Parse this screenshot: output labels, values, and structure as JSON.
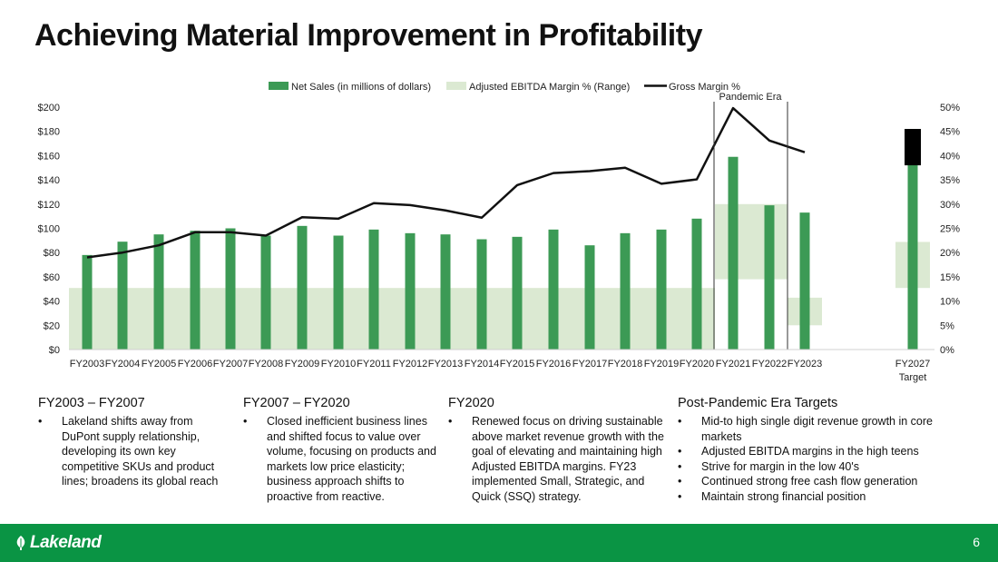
{
  "title": "Achieving Material Improvement in Profitability",
  "chart_data": {
    "type": "bar",
    "categories": [
      "FY2003",
      "FY2004",
      "FY2005",
      "FY2006",
      "FY2007",
      "FY2008",
      "FY2009",
      "FY2010",
      "FY2011",
      "FY2012",
      "FY2013",
      "FY2014",
      "FY2015",
      "FY2016",
      "FY2017",
      "FY2018",
      "FY2019",
      "FY2020",
      "FY2021",
      "FY2022",
      "FY2023",
      "FY2027\nTarget"
    ],
    "legend": {
      "net_sales": "Net Sales (in millions of dollars)",
      "ebitda": "Adjusted EBITDA Margin % (Range)",
      "gross": "Gross Margin %"
    },
    "legend_position": "top-center",
    "annotation": "Pandemic Era",
    "net_sales": [
      78,
      89,
      95,
      98,
      100,
      94,
      102,
      94,
      99,
      96,
      95,
      91,
      93,
      99,
      86,
      96,
      99,
      108,
      159,
      119,
      113,
      182
    ],
    "gross_margin_pct": [
      19,
      20,
      21.5,
      24.2,
      24.2,
      23.5,
      27.3,
      27,
      30.2,
      29.8,
      28.7,
      27.2,
      33.9,
      36.4,
      36.8,
      37.5,
      34.2,
      35.1,
      49.8,
      43.1,
      40.7,
      null
    ],
    "gross_margin_target_pct": [
      38,
      45.5
    ],
    "ebitda_ranges_pct": [
      {
        "from": "FY2003",
        "to": "FY2020",
        "low": 0,
        "high": 12.7
      },
      {
        "from": "FY2021",
        "to": "FY2022",
        "low": 14.5,
        "high": 30
      },
      {
        "from": "FY2023",
        "to": "FY2023",
        "low": 5,
        "high": 10.7
      },
      {
        "from": "FY2027\nTarget",
        "to": "FY2027\nTarget",
        "low": 12.7,
        "high": 22.2
      }
    ],
    "y_left": {
      "min": 0,
      "max": 200,
      "step": 20,
      "ticks": [
        "$0",
        "$20",
        "$40",
        "$60",
        "$80",
        "$100",
        "$120",
        "$140",
        "$160",
        "$180",
        "$200"
      ]
    },
    "y_right": {
      "min": 0,
      "max": 50,
      "step": 5,
      "ticks": [
        "0%",
        "5%",
        "10%",
        "15%",
        "20%",
        "25%",
        "30%",
        "35%",
        "40%",
        "45%",
        "50%"
      ]
    },
    "grid": false,
    "colors": {
      "bar": "#3c9a55",
      "ebitda": "#dbe9d2",
      "line": "#111111",
      "target_box": "#000000"
    }
  },
  "columns": [
    {
      "heading": "FY2003 – FY2007",
      "bullets": [
        "Lakeland shifts away from DuPont supply relationship, developing  its own key competitive SKUs and product lines; broadens its global reach"
      ]
    },
    {
      "heading": "FY2007 – FY2020",
      "bullets": [
        "Closed inefficient business lines and shifted focus to value over volume, focusing on products and markets low price elasticity; business approach shifts to proactive from reactive."
      ]
    },
    {
      "heading": "FY2020",
      "bullets": [
        "Renewed focus on driving sustainable above market revenue growth with the goal of elevating and maintaining high Adjusted EBITDA margins. FY23 implemented Small, Strategic, and Quick (SSQ) strategy."
      ]
    },
    {
      "heading": "Post-Pandemic Era Targets",
      "bullets": [
        "Mid-to high single digit revenue growth in core markets",
        "Adjusted EBITDA margins in the high teens",
        "Strive for margin in the low 40's",
        "Continued strong free cash flow generation",
        "Maintain strong financial position"
      ]
    }
  ],
  "footer": {
    "logo": "Lakeland",
    "page": "6"
  }
}
